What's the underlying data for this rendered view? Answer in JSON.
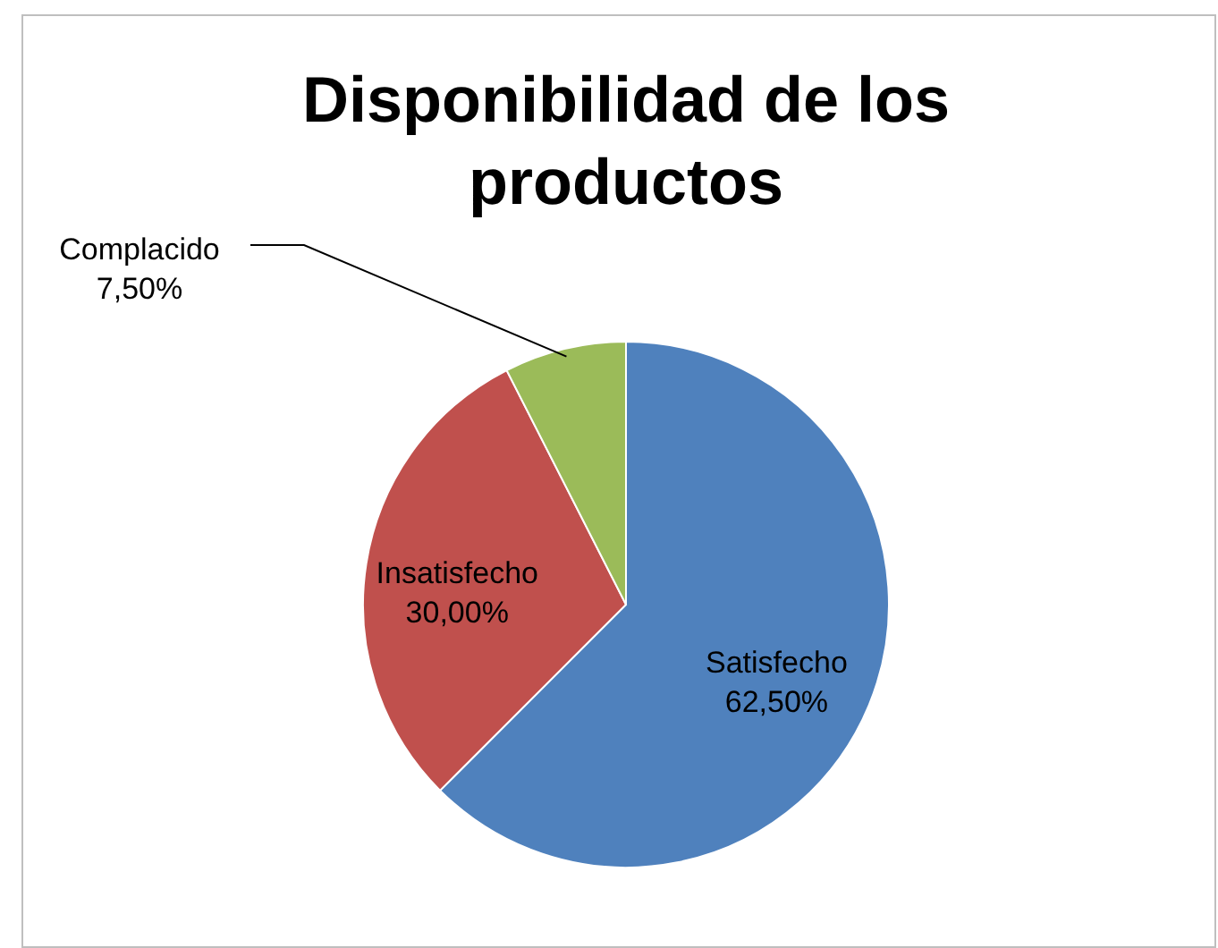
{
  "chart_data": {
    "type": "pie",
    "title": "Disponibilidad de los productos",
    "categories": [
      "Satisfecho",
      "Insatisfecho",
      "Complacido"
    ],
    "values": [
      62.5,
      30,
      7.5
    ],
    "colors": [
      "#4f81bd",
      "#c0504d",
      "#9bbb59"
    ],
    "value_labels": [
      "62,50%",
      "30,00%",
      "7,50%"
    ]
  }
}
